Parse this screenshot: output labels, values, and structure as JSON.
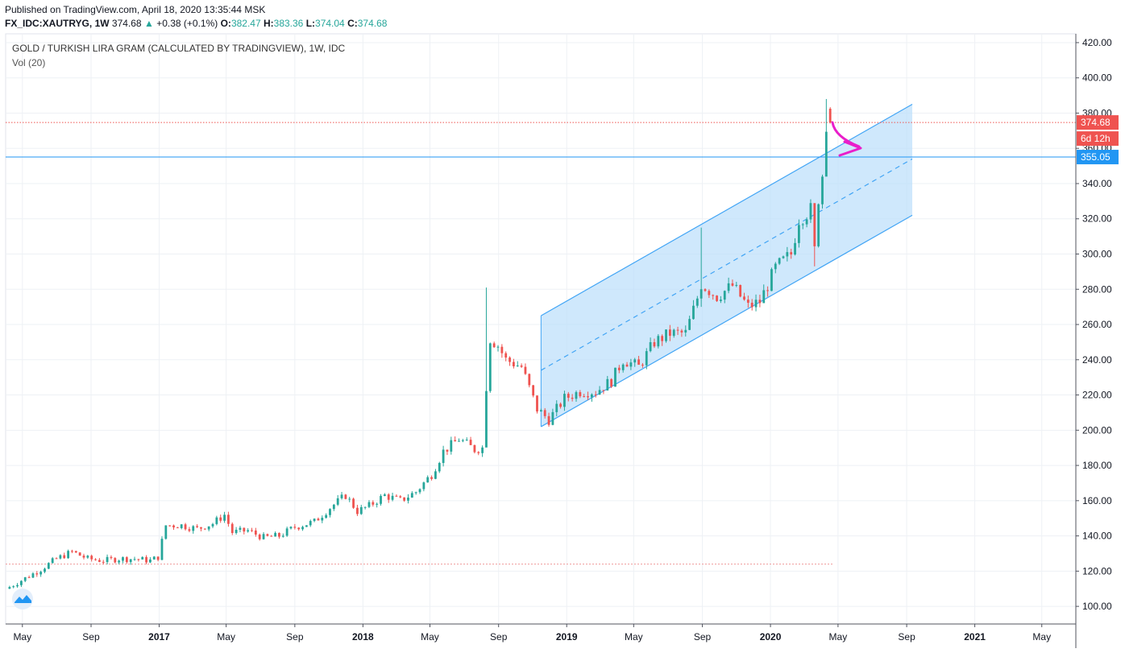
{
  "header": {
    "published": "Published on TradingView.com, April 18, 2020 13:35:44 MSK",
    "symbol": "FX_IDC:XAUTRYG, 1W",
    "last": "374.68",
    "arrow": "▲",
    "change": "+0.38 (+0.1%)",
    "o_label": "O:",
    "o_value": "382.47",
    "h_label": "H:",
    "h_value": "383.36",
    "l_label": "L:",
    "l_value": "374.04",
    "c_label": "C:",
    "c_value": "374.68"
  },
  "legend": {
    "title": "GOLD / TURKISH LIRA GRAM (CALCULATED BY TRADINGVIEW), 1W, IDC",
    "volume": "Vol (20)"
  },
  "price_labels": {
    "last_price": "374.68",
    "countdown": "6d 12h",
    "hline_price": "355.05"
  },
  "colors": {
    "up": "#26a69a",
    "down": "#ef5350",
    "channel": "#42a5f5",
    "channel_fill": "#bbdefb",
    "hline": "#2196f3",
    "last_line": "#ef5350",
    "annotation": "#e91eca",
    "grid": "#eef1f5"
  },
  "chart_data": {
    "type": "candlestick",
    "title": "GOLD / TURKISH LIRA GRAM (CALCULATED BY TRADINGVIEW), 1W, IDC",
    "interval": "1W",
    "ylim": [
      90,
      425
    ],
    "y_ticks": [
      100,
      120,
      140,
      160,
      180,
      200,
      220,
      240,
      260,
      280,
      300,
      320,
      340,
      360,
      380,
      400,
      420
    ],
    "y_tick_labels": [
      "100.00",
      "120.00",
      "140.00",
      "160.00",
      "180.00",
      "200.00",
      "220.00",
      "240.00",
      "260.00",
      "280.00",
      "300.00",
      "320.00",
      "340.00",
      "360.00",
      "380.00",
      "400.00",
      "420.00"
    ],
    "x_ticks": [
      {
        "label": "May",
        "date": "2016-05-01"
      },
      {
        "label": "Sep",
        "date": "2016-09-01"
      },
      {
        "label": "2017",
        "date": "2017-01-01"
      },
      {
        "label": "May",
        "date": "2017-05-01"
      },
      {
        "label": "Sep",
        "date": "2017-09-01"
      },
      {
        "label": "2018",
        "date": "2018-01-01"
      },
      {
        "label": "May",
        "date": "2018-05-01"
      },
      {
        "label": "Sep",
        "date": "2018-09-01"
      },
      {
        "label": "2019",
        "date": "2019-01-01"
      },
      {
        "label": "May",
        "date": "2019-05-01"
      },
      {
        "label": "Sep",
        "date": "2019-09-01"
      },
      {
        "label": "2020",
        "date": "2020-01-01"
      },
      {
        "label": "May",
        "date": "2020-05-01"
      },
      {
        "label": "Sep",
        "date": "2020-09-01"
      },
      {
        "label": "2021",
        "date": "2021-01-01"
      },
      {
        "label": "May",
        "date": "2021-05-01"
      }
    ],
    "series": [
      {
        "close_anchors": [
          [
            "2016-04-08",
            111
          ],
          [
            "2016-05-06",
            116
          ],
          [
            "2016-06-03",
            121
          ],
          [
            "2016-07-01",
            127
          ],
          [
            "2016-07-29",
            131
          ],
          [
            "2016-08-26",
            127
          ],
          [
            "2016-09-23",
            126
          ],
          [
            "2016-10-21",
            127
          ],
          [
            "2016-11-18",
            127
          ],
          [
            "2016-12-16",
            126
          ],
          [
            "2016-12-30",
            128
          ],
          [
            "2017-01-13",
            146
          ],
          [
            "2017-02-10",
            146
          ],
          [
            "2017-03-10",
            144
          ],
          [
            "2017-04-07",
            147
          ],
          [
            "2017-04-28",
            152
          ],
          [
            "2017-05-12",
            142
          ],
          [
            "2017-06-09",
            143
          ],
          [
            "2017-07-07",
            139
          ],
          [
            "2017-08-04",
            140
          ],
          [
            "2017-09-01",
            145
          ],
          [
            "2017-10-06",
            148
          ],
          [
            "2017-11-03",
            156
          ],
          [
            "2017-12-01",
            163
          ],
          [
            "2017-12-22",
            154
          ],
          [
            "2018-01-12",
            157
          ],
          [
            "2018-02-09",
            163
          ],
          [
            "2018-03-09",
            160
          ],
          [
            "2018-04-06",
            165
          ],
          [
            "2018-05-04",
            175
          ],
          [
            "2018-05-25",
            188
          ],
          [
            "2018-06-22",
            195
          ],
          [
            "2018-07-20",
            189
          ],
          [
            "2018-08-03",
            190
          ],
          [
            "2018-08-10",
            225
          ],
          [
            "2018-08-17",
            252
          ],
          [
            "2018-08-31",
            248
          ],
          [
            "2018-09-14",
            240
          ],
          [
            "2018-10-12",
            236
          ],
          [
            "2018-11-09",
            212
          ],
          [
            "2018-11-30",
            206
          ],
          [
            "2018-12-28",
            218
          ],
          [
            "2019-01-25",
            222
          ],
          [
            "2019-02-22",
            222
          ],
          [
            "2019-03-22",
            228
          ],
          [
            "2019-04-12",
            240
          ],
          [
            "2019-05-10",
            236
          ],
          [
            "2019-06-07",
            250
          ],
          [
            "2019-07-05",
            255
          ],
          [
            "2019-08-02",
            255
          ],
          [
            "2019-08-23",
            275
          ],
          [
            "2019-08-30",
            283
          ],
          [
            "2019-09-27",
            276
          ],
          [
            "2019-10-25",
            282
          ],
          [
            "2019-11-22",
            270
          ],
          [
            "2019-12-13",
            273
          ],
          [
            "2020-01-10",
            292
          ],
          [
            "2020-02-07",
            300
          ],
          [
            "2020-02-21",
            320
          ],
          [
            "2020-03-13",
            325
          ],
          [
            "2020-03-20",
            302
          ],
          [
            "2020-03-27",
            332
          ],
          [
            "2020-04-03",
            345
          ],
          [
            "2020-04-10",
            375
          ],
          [
            "2020-04-17",
            374.68
          ]
        ],
        "notable_bars": [
          {
            "date": "2018-08-10",
            "high": 281,
            "low": 203
          },
          {
            "date": "2019-08-30",
            "high": 315,
            "low": 270
          },
          {
            "date": "2020-03-20",
            "high": 327,
            "low": 293
          },
          {
            "date": "2020-04-10",
            "high": 388,
            "low": 350
          },
          {
            "date": "2020-04-17",
            "open": 382.47,
            "high": 383.36,
            "low": 374.04,
            "close": 374.68
          }
        ]
      }
    ],
    "annotations": {
      "horizontal_line": 355.05,
      "last_price": 374.68,
      "dotted_level": 124,
      "regression_channel": {
        "start_date": "2018-11-16",
        "end_date": "2020-09-11",
        "upper_start": 265,
        "upper_end": 385,
        "mid_start": 234,
        "mid_end": 354,
        "lower_start": 202,
        "lower_end": 322
      }
    }
  }
}
